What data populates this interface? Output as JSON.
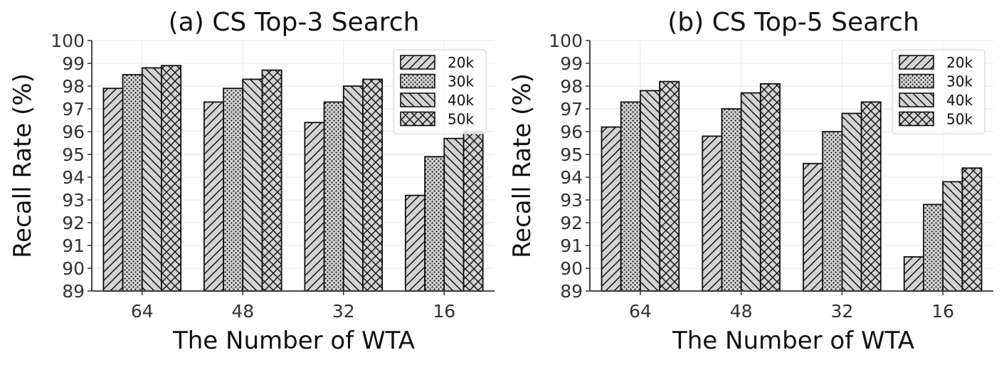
{
  "chart_data": [
    {
      "type": "bar",
      "title": "(a) CS Top-3 Search",
      "xlabel": "The Number of WTA",
      "ylabel": "Recall Rate (%)",
      "categories": [
        "64",
        "48",
        "32",
        "16"
      ],
      "ylim": [
        89,
        100
      ],
      "yticks": [
        "89",
        "90",
        "91",
        "92",
        "93",
        "94",
        "95",
        "96",
        "97",
        "98",
        "99",
        "100"
      ],
      "grid": true,
      "legend_position": "top-right",
      "series": [
        {
          "name": "20k",
          "pattern": "diagonal",
          "values": [
            97.9,
            97.3,
            96.4,
            93.2
          ]
        },
        {
          "name": "30k",
          "pattern": "dots",
          "values": [
            98.5,
            97.9,
            97.3,
            94.9
          ]
        },
        {
          "name": "40k",
          "pattern": "backslash",
          "values": [
            98.8,
            98.3,
            98.0,
            95.7
          ]
        },
        {
          "name": "50k",
          "pattern": "crosshatch",
          "values": [
            98.9,
            98.7,
            98.3,
            96.0
          ]
        }
      ]
    },
    {
      "type": "bar",
      "title": "(b) CS Top-5 Search",
      "xlabel": "The Number of WTA",
      "ylabel": "Recall Rate (%)",
      "categories": [
        "64",
        "48",
        "32",
        "16"
      ],
      "ylim": [
        89,
        100
      ],
      "yticks": [
        "89",
        "90",
        "91",
        "92",
        "93",
        "94",
        "95",
        "96",
        "97",
        "98",
        "99",
        "100"
      ],
      "grid": true,
      "legend_position": "top-right",
      "series": [
        {
          "name": "20k",
          "pattern": "diagonal",
          "values": [
            96.2,
            95.8,
            94.6,
            90.5
          ]
        },
        {
          "name": "30k",
          "pattern": "dots",
          "values": [
            97.3,
            97.0,
            96.0,
            92.8
          ]
        },
        {
          "name": "40k",
          "pattern": "backslash",
          "values": [
            97.8,
            97.7,
            96.8,
            93.8
          ]
        },
        {
          "name": "50k",
          "pattern": "crosshatch",
          "values": [
            98.2,
            98.1,
            97.3,
            94.4
          ]
        }
      ]
    }
  ],
  "colors": {
    "bar_fill": "#d3d3d3",
    "bar_edge": "#111111",
    "grid": "#e6e6e6",
    "axis": "#333333"
  }
}
